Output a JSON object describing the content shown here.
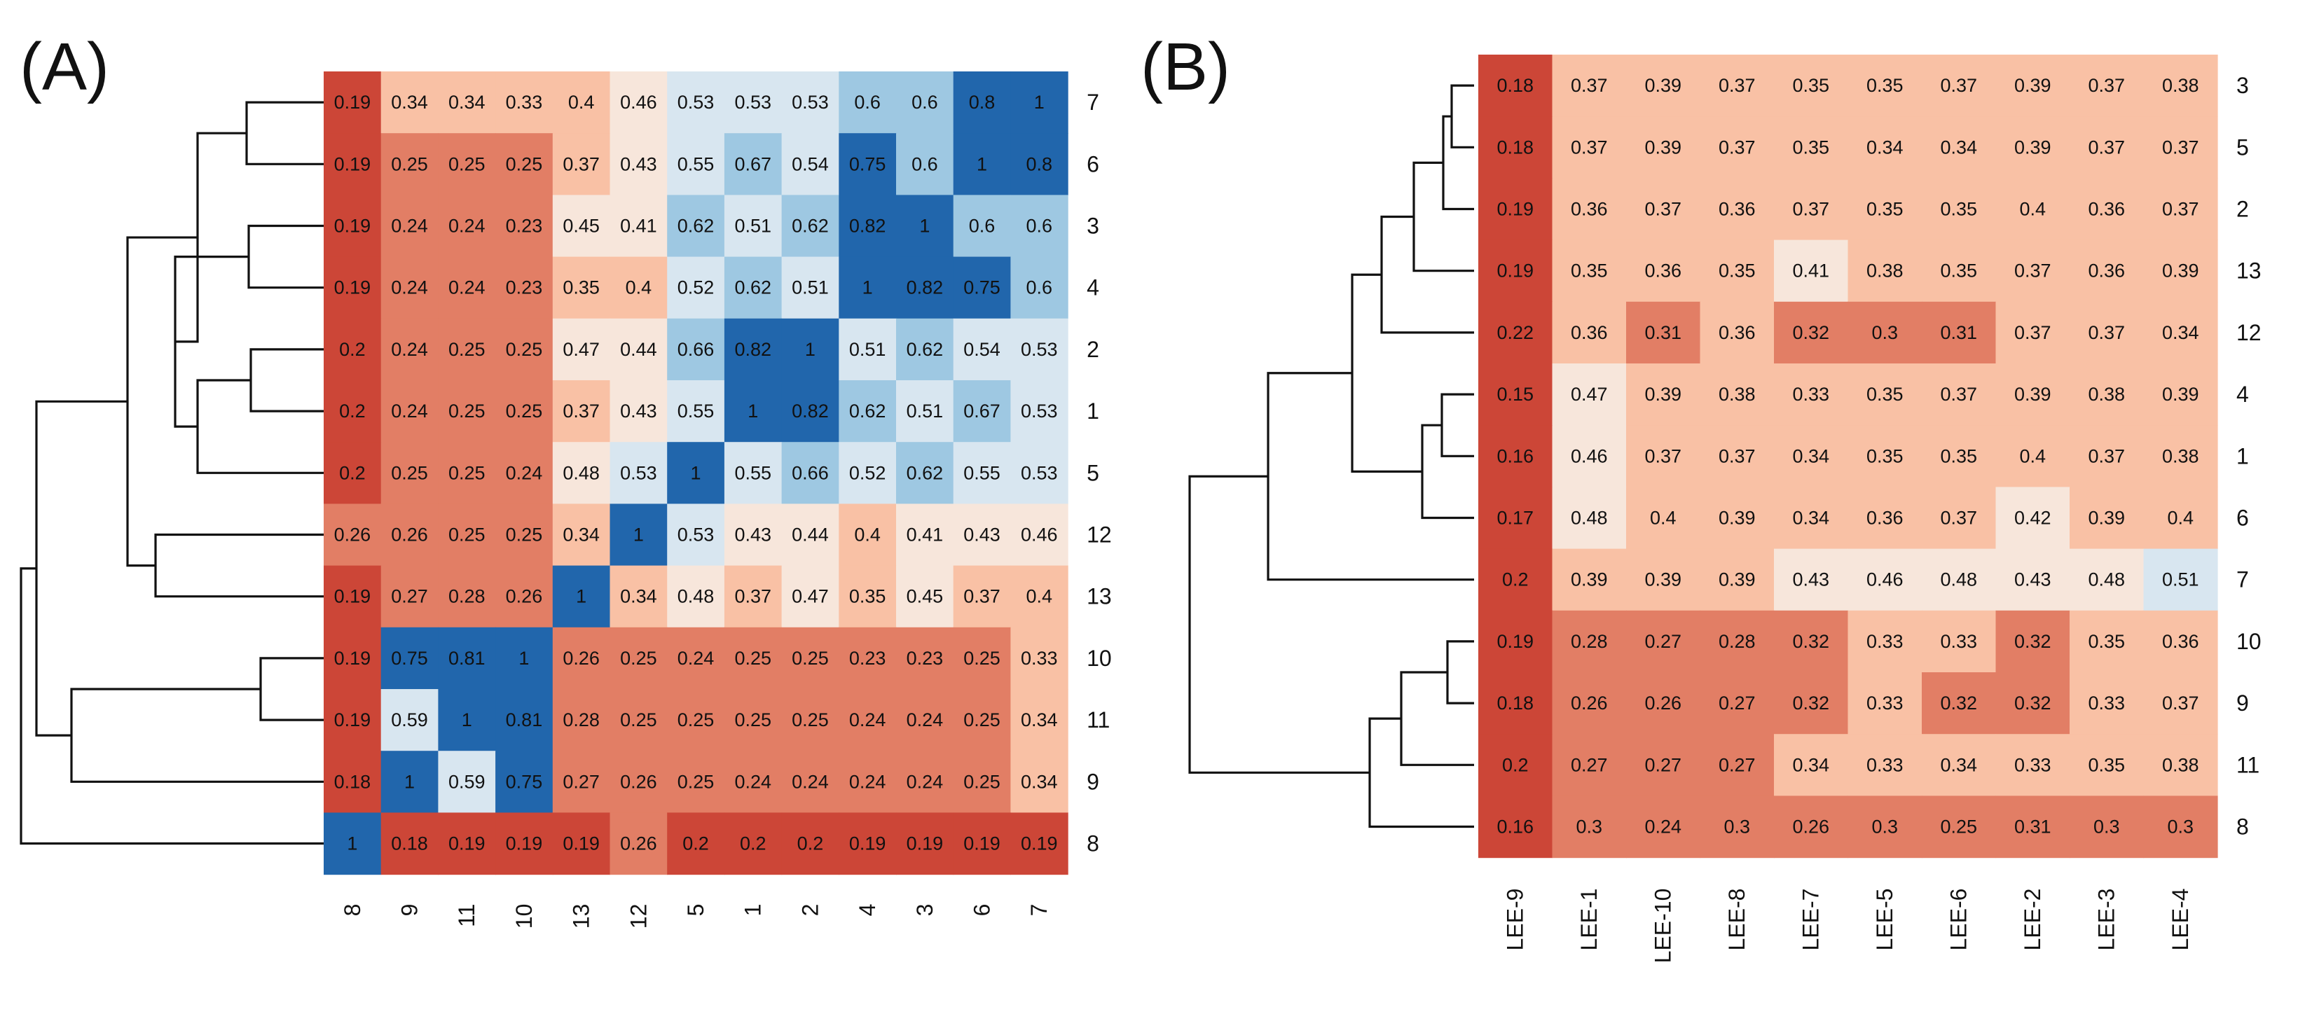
{
  "figure": {
    "panel_labels": [
      "(A)",
      "(B)"
    ]
  },
  "palette": {
    "low": "#cc4637",
    "lowmid": "#e27e65",
    "mid": "#f9c1a5",
    "pale": "#f7e6db",
    "neutral": "#d8e6f0",
    "highmid": "#9ec8e2",
    "high": "#2166ac",
    "line": "#111111"
  },
  "chart_data": [
    {
      "type": "heatmap",
      "panel": "(A)",
      "title": "",
      "row_labels": [
        "7",
        "6",
        "3",
        "4",
        "2",
        "1",
        "5",
        "12",
        "13",
        "10",
        "11",
        "9",
        "8"
      ],
      "col_labels": [
        "8",
        "9",
        "11",
        "10",
        "13",
        "12",
        "5",
        "1",
        "2",
        "4",
        "3",
        "6",
        "7"
      ],
      "values": [
        [
          0.19,
          0.34,
          0.34,
          0.33,
          0.4,
          0.46,
          0.53,
          0.53,
          0.53,
          0.6,
          0.6,
          0.8,
          1
        ],
        [
          0.19,
          0.25,
          0.25,
          0.25,
          0.37,
          0.43,
          0.55,
          0.67,
          0.54,
          0.75,
          0.6,
          1,
          0.8
        ],
        [
          0.19,
          0.24,
          0.24,
          0.23,
          0.45,
          0.41,
          0.62,
          0.51,
          0.62,
          0.82,
          1,
          0.6,
          0.6
        ],
        [
          0.19,
          0.24,
          0.24,
          0.23,
          0.35,
          0.4,
          0.52,
          0.62,
          0.51,
          1,
          0.82,
          0.75,
          0.6
        ],
        [
          0.2,
          0.24,
          0.25,
          0.25,
          0.47,
          0.44,
          0.66,
          0.82,
          1,
          0.51,
          0.62,
          0.54,
          0.53
        ],
        [
          0.2,
          0.24,
          0.25,
          0.25,
          0.37,
          0.43,
          0.55,
          1,
          0.82,
          0.62,
          0.51,
          0.67,
          0.53
        ],
        [
          0.2,
          0.25,
          0.25,
          0.24,
          0.48,
          0.53,
          1,
          0.55,
          0.66,
          0.52,
          0.62,
          0.55,
          0.53
        ],
        [
          0.26,
          0.26,
          0.25,
          0.25,
          0.34,
          1,
          0.53,
          0.43,
          0.44,
          0.4,
          0.41,
          0.43,
          0.46
        ],
        [
          0.19,
          0.27,
          0.28,
          0.26,
          1,
          0.34,
          0.48,
          0.37,
          0.47,
          0.35,
          0.45,
          0.37,
          0.4
        ],
        [
          0.19,
          0.75,
          0.81,
          1,
          0.26,
          0.25,
          0.24,
          0.25,
          0.25,
          0.23,
          0.23,
          0.25,
          0.33
        ],
        [
          0.19,
          0.59,
          1,
          0.81,
          0.28,
          0.25,
          0.25,
          0.25,
          0.25,
          0.24,
          0.24,
          0.25,
          0.34
        ],
        [
          0.18,
          1,
          0.59,
          0.75,
          0.27,
          0.26,
          0.25,
          0.24,
          0.24,
          0.24,
          0.24,
          0.25,
          0.34
        ],
        [
          1,
          0.18,
          0.19,
          0.19,
          0.19,
          0.26,
          0.2,
          0.2,
          0.2,
          0.19,
          0.19,
          0.19,
          0.19
        ]
      ],
      "row_dendrogram": "hierarchical clustering of rows"
    },
    {
      "type": "heatmap",
      "panel": "(B)",
      "title": "",
      "row_labels": [
        "3",
        "5",
        "2",
        "13",
        "12",
        "4",
        "1",
        "6",
        "7",
        "10",
        "9",
        "11",
        "8"
      ],
      "col_labels": [
        "LEE-9",
        "LEE-1",
        "LEE-10",
        "LEE-8",
        "LEE-7",
        "LEE-5",
        "LEE-6",
        "LEE-2",
        "LEE-3",
        "LEE-4"
      ],
      "values": [
        [
          0.18,
          0.37,
          0.39,
          0.37,
          0.35,
          0.35,
          0.37,
          0.39,
          0.37,
          0.38
        ],
        [
          0.18,
          0.37,
          0.39,
          0.37,
          0.35,
          0.34,
          0.34,
          0.39,
          0.37,
          0.37
        ],
        [
          0.19,
          0.36,
          0.37,
          0.36,
          0.37,
          0.35,
          0.35,
          0.4,
          0.36,
          0.37
        ],
        [
          0.19,
          0.35,
          0.36,
          0.35,
          0.41,
          0.38,
          0.35,
          0.37,
          0.36,
          0.39
        ],
        [
          0.22,
          0.36,
          0.31,
          0.36,
          0.32,
          0.3,
          0.31,
          0.37,
          0.37,
          0.34
        ],
        [
          0.15,
          0.47,
          0.39,
          0.38,
          0.33,
          0.35,
          0.37,
          0.39,
          0.38,
          0.39
        ],
        [
          0.16,
          0.46,
          0.37,
          0.37,
          0.34,
          0.35,
          0.35,
          0.4,
          0.37,
          0.38
        ],
        [
          0.17,
          0.48,
          0.4,
          0.39,
          0.34,
          0.36,
          0.37,
          0.42,
          0.39,
          0.4
        ],
        [
          0.2,
          0.39,
          0.39,
          0.39,
          0.43,
          0.46,
          0.48,
          0.43,
          0.48,
          0.51
        ],
        [
          0.19,
          0.28,
          0.27,
          0.28,
          0.32,
          0.33,
          0.33,
          0.32,
          0.35,
          0.36
        ],
        [
          0.18,
          0.26,
          0.26,
          0.27,
          0.32,
          0.33,
          0.32,
          0.32,
          0.33,
          0.37
        ],
        [
          0.2,
          0.27,
          0.27,
          0.27,
          0.34,
          0.33,
          0.34,
          0.33,
          0.35,
          0.38
        ],
        [
          0.16,
          0.3,
          0.24,
          0.3,
          0.26,
          0.3,
          0.25,
          0.31,
          0.3,
          0.3
        ]
      ],
      "row_dendrogram": "hierarchical clustering of rows"
    }
  ]
}
